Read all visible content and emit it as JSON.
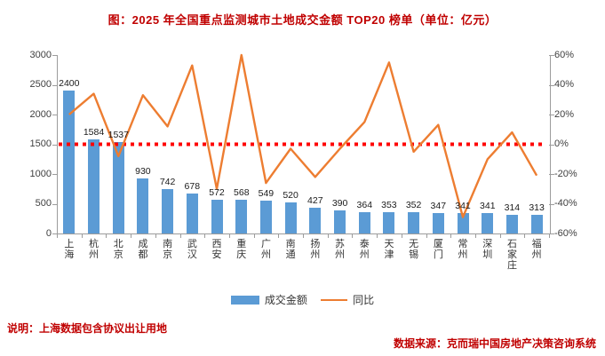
{
  "title": "图：2025 年全国重点监测城市土地成交金额 TOP20 榜单（单位：亿元）",
  "chart_data": {
    "type": "combo",
    "categories": [
      "上海",
      "杭州",
      "北京",
      "成都",
      "南京",
      "武汉",
      "西安",
      "重庆",
      "广州",
      "南通",
      "扬州",
      "苏州",
      "泰州",
      "天津",
      "无锡",
      "厦门",
      "常州",
      "深圳",
      "石家庄",
      "福州"
    ],
    "series": [
      {
        "name": "成交金额",
        "type": "bar",
        "axis": "left",
        "unit": "亿元",
        "values": [
          2400,
          1584,
          1537,
          930,
          742,
          678,
          572,
          568,
          549,
          520,
          427,
          390,
          364,
          353,
          352,
          347,
          341,
          341,
          314,
          313
        ]
      },
      {
        "name": "同比",
        "type": "line",
        "axis": "right",
        "unit": "%",
        "values": [
          20,
          34,
          -8,
          33,
          12,
          53,
          -30,
          60,
          -26,
          -3,
          -22,
          -3,
          15,
          55,
          -5,
          13,
          -49,
          -10,
          8,
          -21
        ]
      }
    ],
    "left_axis": {
      "min": 0,
      "max": 3000,
      "step": 500,
      "tick_labels": [
        "3000",
        "2500",
        "2000",
        "1500",
        "1000",
        "500",
        "0"
      ]
    },
    "right_axis": {
      "min": -60,
      "max": 60,
      "step": 20,
      "tick_labels": [
        "60%",
        "40%",
        "20%",
        "0%",
        "-20%",
        "-40%",
        "-60%"
      ]
    },
    "reference_line": {
      "axis": "right",
      "value": 0,
      "style": "dotted"
    },
    "data_labels_shown": true,
    "grid": false,
    "legend_position": "bottom"
  },
  "legend": {
    "bar_label": "成交金额",
    "line_label": "同比"
  },
  "footnote": "说明：上海数据包含协议出让用地",
  "source": "数据来源：克而瑞中国房地产决策咨询系统",
  "colors": {
    "bar": "#5b9bd5",
    "line": "#ed7d31",
    "reference_line": "#ff0000",
    "title_text": "#c00000",
    "axis_line": "#9c9c9c",
    "axis_text": "#404040"
  }
}
